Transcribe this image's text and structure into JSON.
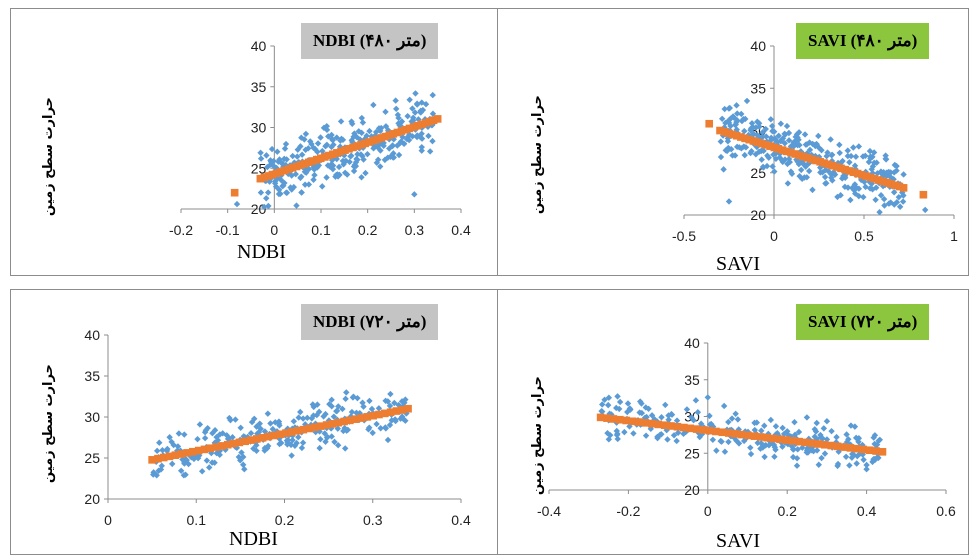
{
  "colors": {
    "points": "#5b9bd5",
    "trend": "#ed7d31",
    "gray_title": "#c4c4c4",
    "green_title": "#8cc63f",
    "axis": "#8c8c8c"
  },
  "chart_data": [
    {
      "type": "scatter",
      "title": "NDBI (۴۸۰ متر)",
      "title_style": "gray",
      "xlabel": "NDBI",
      "ylabel": "حرارت سطح زمین",
      "xlim": [
        -0.2,
        0.4
      ],
      "ylim": [
        20,
        40
      ],
      "xticks": [
        "-0.2",
        "-0.1",
        "0",
        "0.1",
        "0.2",
        "0.3",
        "0.4"
      ],
      "yticks": [
        "20",
        "25",
        "30",
        "35",
        "40"
      ],
      "trend": {
        "slope": 19.3,
        "intercept": 24.3,
        "x_range": [
          -0.03,
          0.35
        ]
      },
      "cloud": {
        "x_range": [
          -0.03,
          0.34
        ],
        "spread": 1.8,
        "count": 320
      },
      "extra_points": [
        [
          -0.08,
          20.6
        ],
        [
          0.3,
          21.8
        ],
        [
          0.0,
          25.2
        ],
        [
          0.29,
          33.4
        ],
        [
          0.26,
          33.3
        ]
      ],
      "extra_trend_points": [
        [
          -0.085,
          22.0
        ]
      ]
    },
    {
      "type": "scatter",
      "title": "SAVI (۴۸۰ متر)",
      "title_style": "green",
      "xlabel": "SAVI",
      "ylabel": "حرارت سطح زمین",
      "xlim": [
        -0.5,
        1.0
      ],
      "ylim": [
        20,
        40
      ],
      "xticks": [
        "-0.5",
        "0",
        "0.5",
        "1"
      ],
      "yticks": [
        "20",
        "25",
        "30",
        "35",
        "40"
      ],
      "trend": {
        "slope": -6.65,
        "intercept": 28.0,
        "x_range": [
          -0.3,
          0.72
        ]
      },
      "cloud": {
        "x_range": [
          -0.3,
          0.72
        ],
        "spread": 1.7,
        "count": 320
      },
      "extra_points": [
        [
          -0.25,
          21.6
        ],
        [
          0.84,
          20.6
        ],
        [
          -0.15,
          33.5
        ],
        [
          0.72,
          24.8
        ],
        [
          -0.28,
          25.4
        ]
      ],
      "extra_trend_points": [
        [
          -0.36,
          30.8
        ],
        [
          0.83,
          22.4
        ]
      ]
    },
    {
      "type": "scatter",
      "title": "NDBI (۷۲۰ متر)",
      "title_style": "gray",
      "xlabel": "NDBI",
      "ylabel": "حرارت سطح زمین",
      "xlim": [
        0,
        0.4
      ],
      "ylim": [
        20,
        40
      ],
      "xticks": [
        "0",
        "0.1",
        "0.2",
        "0.3",
        "0.4"
      ],
      "yticks": [
        "20",
        "25",
        "30",
        "35",
        "40"
      ],
      "trend": {
        "slope": 21.5,
        "intercept": 23.7,
        "x_range": [
          0.05,
          0.34
        ]
      },
      "cloud": {
        "x_range": [
          0.05,
          0.34
        ],
        "spread": 1.4,
        "count": 260
      },
      "extra_points": [
        [
          0.27,
          33.0
        ],
        [
          0.32,
          32.8
        ],
        [
          0.06,
          23.6
        ]
      ],
      "extra_trend_points": []
    },
    {
      "type": "scatter",
      "title": "SAVI (۷۲۰ متر)",
      "title_style": "green",
      "xlabel": "SAVI",
      "ylabel": "حرارت سطح زمین",
      "xlim": [
        -0.4,
        0.6
      ],
      "ylim": [
        20,
        40
      ],
      "xticks": [
        "-0.4",
        "-0.2",
        "0",
        "0.2",
        "0.4",
        "0.6"
      ],
      "yticks": [
        "20",
        "25",
        "30",
        "35",
        "40"
      ],
      "trend": {
        "slope": -6.6,
        "intercept": 28.1,
        "x_range": [
          -0.27,
          0.44
        ]
      },
      "cloud": {
        "x_range": [
          -0.27,
          0.44
        ],
        "spread": 1.4,
        "count": 260
      },
      "extra_points": [
        [
          0.0,
          32.6
        ],
        [
          -0.03,
          32.2
        ],
        [
          0.4,
          23.4
        ]
      ],
      "extra_trend_points": []
    }
  ]
}
